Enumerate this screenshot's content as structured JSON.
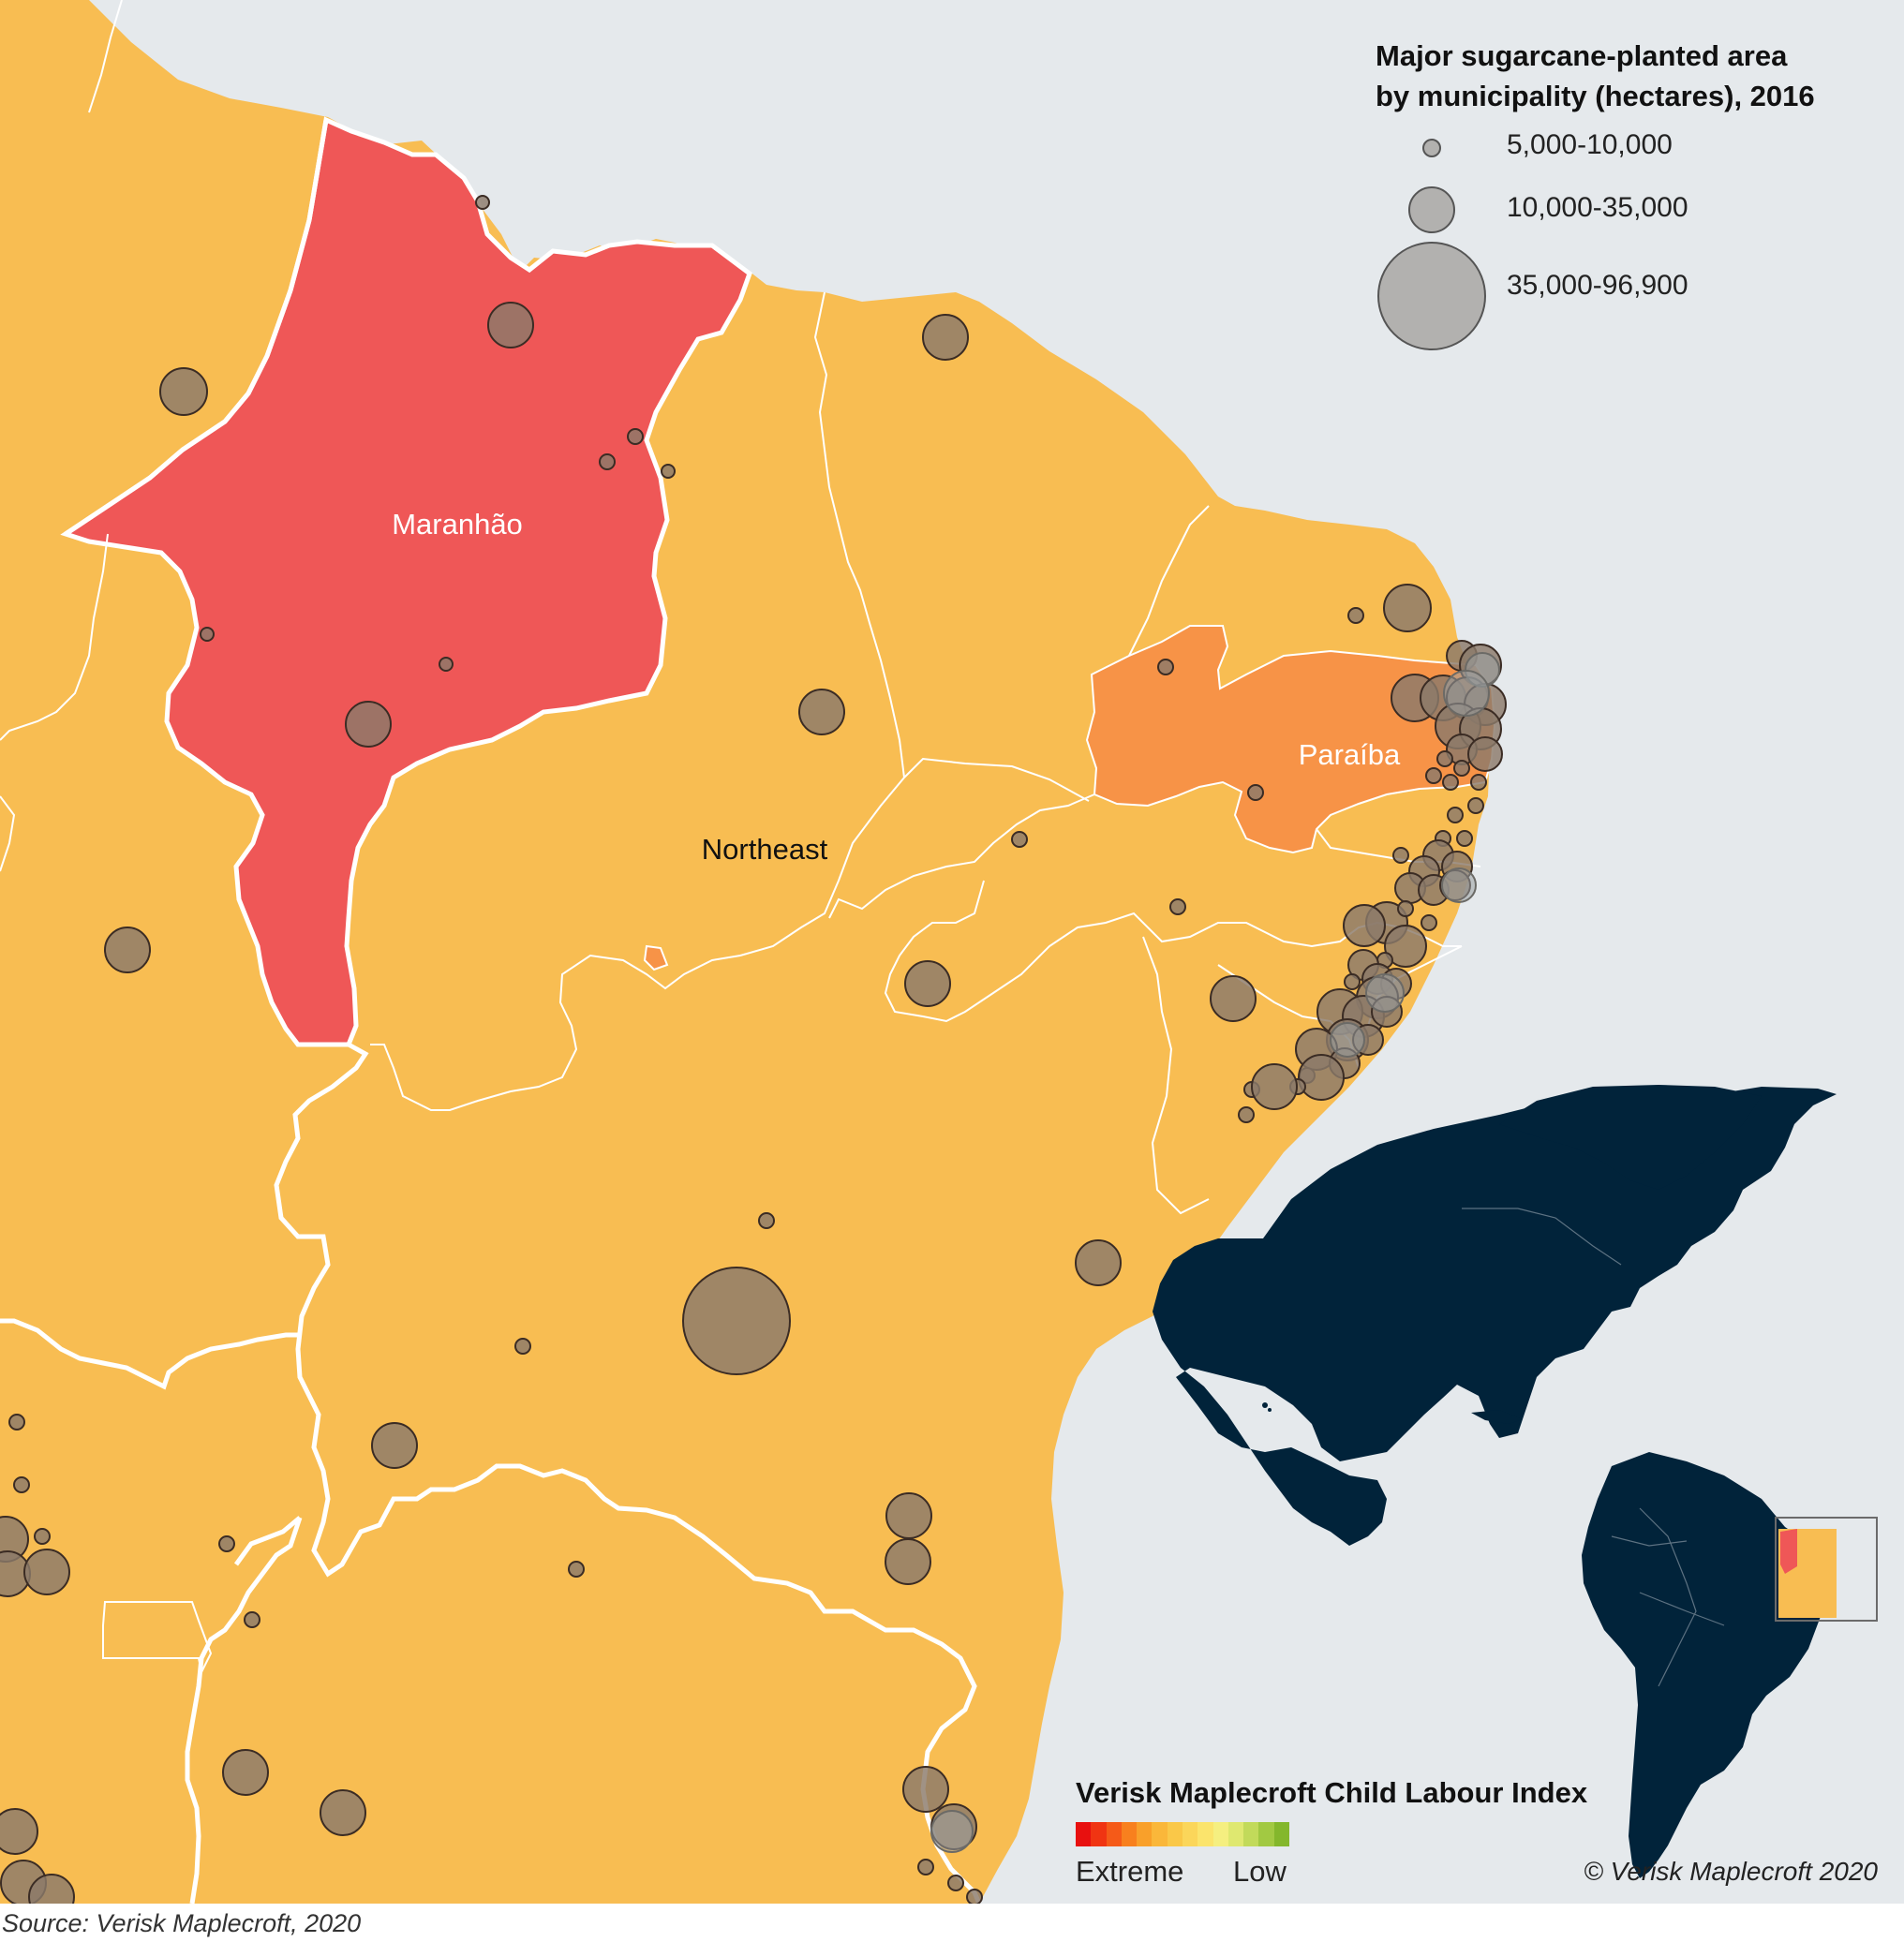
{
  "legend": {
    "title_line1": "Major sugarcane-planted area",
    "title_line2": "by municipality (hectares), 2016",
    "classes": [
      {
        "label": "5,000-10,000"
      },
      {
        "label": "10,000-35,000"
      },
      {
        "label": "35,000-96,900"
      }
    ]
  },
  "labels": {
    "maranhao": "Maranhão",
    "paraiba": "Paraíba",
    "northeast": "Northeast"
  },
  "index": {
    "title": "Verisk Maplecroft Child Labour Index",
    "low_end_label": "Low",
    "high_end_label": "Extreme",
    "colors": [
      "#e8100f",
      "#f03412",
      "#f55a18",
      "#f8801e",
      "#f9a02a",
      "#fab73a",
      "#fac848",
      "#fbd65a",
      "#fbe46c",
      "#f5ef80",
      "#dfe870",
      "#c2da5a",
      "#a2c942",
      "#84b72c"
    ]
  },
  "colors": {
    "ocean": "#e5e9ec",
    "land": "#f8bd52",
    "extreme": "#ef5757",
    "high": "#f79347",
    "bubble_fill": "#8b7a6a",
    "americas": "#01233a"
  },
  "copyright": "© Verisk Maplecroft 2020",
  "source": "Source: Verisk Maplecroft, 2020"
}
